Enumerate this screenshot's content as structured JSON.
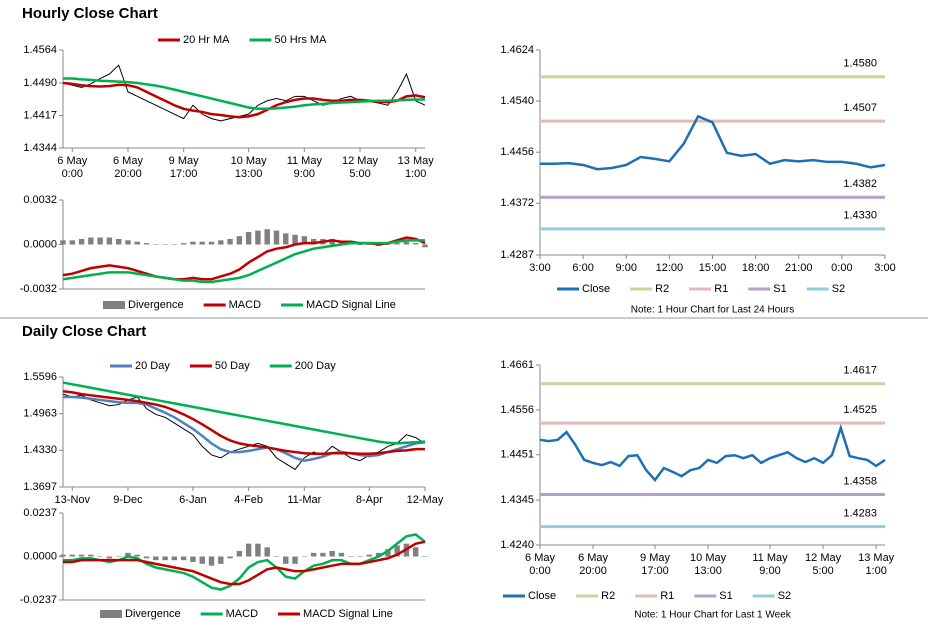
{
  "headings": [
    "Hourly Close Chart",
    "Daily Close Chart"
  ],
  "chart_data": [
    {
      "type": "line",
      "categories": [
        null,
        [
          "6 May",
          "0:00"
        ],
        null,
        null,
        null,
        null,
        null,
        [
          "6 May",
          "20:00"
        ],
        null,
        null,
        null,
        null,
        null,
        [
          "9 May",
          "17:00"
        ],
        null,
        null,
        null,
        null,
        null,
        null,
        [
          "10 May",
          "13:00"
        ],
        null,
        null,
        null,
        null,
        null,
        [
          "11 May",
          "9:00"
        ],
        null,
        null,
        null,
        null,
        null,
        [
          "12 May",
          "5:00"
        ],
        null,
        null,
        null,
        null,
        null,
        [
          "13 May",
          "1:00"
        ],
        null
      ],
      "values": [
        1.449,
        1.4485,
        1.448,
        1.4488,
        1.45,
        1.451,
        1.453,
        1.447,
        1.446,
        1.445,
        1.444,
        1.443,
        1.442,
        1.441,
        1.444,
        1.442,
        1.441,
        1.4405,
        1.441,
        1.4415,
        1.442,
        1.444,
        1.445,
        1.4455,
        1.445,
        1.446,
        1.446,
        1.445,
        1.444,
        1.4445,
        1.4455,
        1.446,
        1.445,
        1.4448,
        1.4445,
        1.444,
        1.447,
        1.451,
        1.445,
        1.444
      ],
      "color": "#000000",
      "series": [
        {
          "name": "20 Hr MA",
          "color": "#c00000",
          "values": [
            1.449,
            1.4488,
            1.4485,
            1.4483,
            1.4482,
            1.4483,
            1.4486,
            1.4485,
            1.448,
            1.447,
            1.446,
            1.445,
            1.444,
            1.4432,
            1.4428,
            1.4425,
            1.442,
            1.4418,
            1.4415,
            1.4413,
            1.4415,
            1.442,
            1.443,
            1.444,
            1.4447,
            1.4452,
            1.4455,
            1.4455,
            1.4452,
            1.445,
            1.445,
            1.4452,
            1.4452,
            1.445,
            1.4448,
            1.4447,
            1.445,
            1.446,
            1.4462,
            1.4458
          ]
        },
        {
          "name": "50 Hrs MA",
          "color": "#00b050",
          "values": [
            1.45,
            1.45,
            1.4498,
            1.4497,
            1.4495,
            1.4494,
            1.4493,
            1.4492,
            1.449,
            1.4487,
            1.4484,
            1.448,
            1.4475,
            1.447,
            1.4465,
            1.446,
            1.4455,
            1.445,
            1.4445,
            1.444,
            1.4435,
            1.4432,
            1.4432,
            1.4433,
            1.4435,
            1.4437,
            1.444,
            1.4442,
            1.4443,
            1.4445,
            1.4446,
            1.4447,
            1.4448,
            1.4449,
            1.445,
            1.445,
            1.4451,
            1.4452,
            1.4453,
            1.4453
          ]
        }
      ],
      "ylim": [
        1.4344,
        1.4564
      ],
      "yticks": [
        1.4564,
        {
          "value": 1.449,
          "label": "1.4490"
        },
        1.4417,
        1.4344
      ],
      "grid": false
    },
    {
      "type": "line",
      "series": [
        {
          "name": "Divergence",
          "style": "bar",
          "color": "#808080",
          "values": [
            0.0003,
            0.0003,
            0.0004,
            0.0005,
            0.0005,
            0.0005,
            0.0004,
            0.0003,
            0.0002,
            0.0001,
            0.0,
            0.0,
            0.0,
            0.0001,
            0.0002,
            0.0002,
            0.0002,
            0.0003,
            0.0004,
            0.0006,
            0.0009,
            0.001,
            0.0011,
            0.001,
            0.0008,
            0.0007,
            0.0006,
            0.0004,
            0.0004,
            0.0004,
            0.0002,
            0.0001,
            0.0,
            0.0,
            -0.0001,
            0.0,
            0.0001,
            0.0002,
            0.0001,
            -0.0002
          ]
        },
        {
          "name": "MACD",
          "color": "#c00000",
          "values": [
            -0.0022,
            -0.0021,
            -0.0019,
            -0.0017,
            -0.0016,
            -0.0015,
            -0.0016,
            -0.0017,
            -0.0019,
            -0.0021,
            -0.0023,
            -0.0024,
            -0.0025,
            -0.0025,
            -0.0024,
            -0.0025,
            -0.0025,
            -0.0023,
            -0.0021,
            -0.0018,
            -0.0013,
            -0.0009,
            -0.0005,
            -0.0003,
            -0.0002,
            0.0,
            0.0001,
            0.0001,
            0.0002,
            0.0003,
            0.0002,
            0.0002,
            0.0001,
            0.0001,
            0.0,
            0.0001,
            0.0003,
            0.0005,
            0.0004,
            0.0001
          ]
        },
        {
          "name": "MACD Signal Line",
          "color": "#00b050",
          "values": [
            -0.0025,
            -0.0024,
            -0.0023,
            -0.0022,
            -0.0021,
            -0.002,
            -0.002,
            -0.002,
            -0.0021,
            -0.0022,
            -0.0023,
            -0.0024,
            -0.0025,
            -0.0026,
            -0.0026,
            -0.0027,
            -0.0027,
            -0.0026,
            -0.0025,
            -0.0024,
            -0.0022,
            -0.0019,
            -0.0016,
            -0.0013,
            -0.001,
            -0.0007,
            -0.0005,
            -0.0003,
            -0.0002,
            -0.0001,
            0.0,
            0.0001,
            0.0001,
            0.0001,
            0.0001,
            0.0001,
            0.0002,
            0.0003,
            0.0003,
            0.0003
          ]
        }
      ],
      "ylim": [
        -0.0032,
        0.0032
      ],
      "yticks": [
        0.0032,
        {
          "value": 0,
          "label": "0.0000"
        },
        -0.0032
      ],
      "grid": false
    },
    {
      "type": "line",
      "categories": [
        "3:00",
        null,
        null,
        "6:00",
        null,
        null,
        "9:00",
        null,
        null,
        "12:00",
        null,
        null,
        "15:00",
        null,
        null,
        "18:00",
        null,
        null,
        "21:00",
        null,
        null,
        "0:00",
        null,
        null,
        "3:00"
      ],
      "series": [
        {
          "name": "Close",
          "color": "#1f6fb4",
          "values": [
            1.4437,
            1.4437,
            1.4438,
            1.4435,
            1.4428,
            1.443,
            1.4435,
            1.4448,
            1.4445,
            1.4441,
            1.447,
            1.4515,
            1.4505,
            1.4455,
            1.445,
            1.4453,
            1.4437,
            1.4443,
            1.4441,
            1.4443,
            1.444,
            1.444,
            1.4437,
            1.4431,
            1.4435
          ]
        }
      ],
      "reference_lines": {
        "names": [
          "R2",
          "R1",
          "S1",
          "S2"
        ],
        "colors": [
          "#c4d79b",
          "#e6b9b8",
          "#b3a2c7",
          "#93cddd"
        ],
        "values": [
          1.458,
          1.4507,
          1.4382,
          1.433
        ],
        "value_labels": [
          "1.4580",
          "1.4507",
          "1.4382",
          "1.4330"
        ]
      },
      "ylim": [
        1.4287,
        1.4624
      ],
      "yticks": [
        1.4624,
        {
          "value": 1.454,
          "label": "1.4540"
        },
        1.4456,
        1.4372,
        1.4287
      ],
      "grid": false,
      "note": "Note: 1 Hour Chart for Last 24 Hours"
    },
    {
      "type": "line",
      "categories": [
        null,
        "13-Nov",
        null,
        null,
        null,
        null,
        null,
        "9-Dec",
        null,
        null,
        null,
        null,
        null,
        null,
        "6-Jan",
        null,
        null,
        null,
        null,
        null,
        "4-Feb",
        null,
        null,
        null,
        null,
        null,
        "11-Mar",
        null,
        null,
        null,
        null,
        null,
        null,
        "8-Apr",
        null,
        null,
        null,
        null,
        null,
        "12-May"
      ],
      "values": [
        1.53,
        1.525,
        1.528,
        1.52,
        1.515,
        1.51,
        1.512,
        1.52,
        1.525,
        1.505,
        1.495,
        1.49,
        1.48,
        1.47,
        1.46,
        1.44,
        1.425,
        1.42,
        1.43,
        1.435,
        1.44,
        1.445,
        1.44,
        1.42,
        1.41,
        1.4,
        1.42,
        1.43,
        1.425,
        1.44,
        1.43,
        1.42,
        1.415,
        1.425,
        1.43,
        1.44,
        1.445,
        1.46,
        1.455,
        1.445
      ],
      "color": "#000000",
      "series": [
        {
          "name": "20 Day",
          "color": "#4f81bd",
          "values": [
            1.525,
            1.525,
            1.524,
            1.522,
            1.52,
            1.518,
            1.516,
            1.515,
            1.515,
            1.512,
            1.505,
            1.498,
            1.49,
            1.48,
            1.47,
            1.458,
            1.445,
            1.435,
            1.43,
            1.43,
            1.432,
            1.435,
            1.438,
            1.435,
            1.428,
            1.42,
            1.415,
            1.418,
            1.422,
            1.428,
            1.43,
            1.428,
            1.425,
            1.423,
            1.425,
            1.43,
            1.435,
            1.44,
            1.445,
            1.447
          ]
        },
        {
          "name": "50 Day",
          "color": "#c00000",
          "values": [
            1.535,
            1.533,
            1.53,
            1.528,
            1.526,
            1.524,
            1.522,
            1.52,
            1.518,
            1.515,
            1.512,
            1.508,
            1.502,
            1.495,
            1.487,
            1.478,
            1.468,
            1.458,
            1.45,
            1.445,
            1.442,
            1.44,
            1.438,
            1.435,
            1.432,
            1.43,
            1.428,
            1.427,
            1.427,
            1.428,
            1.428,
            1.428,
            1.427,
            1.427,
            1.428,
            1.43,
            1.432,
            1.433,
            1.435,
            1.435
          ]
        },
        {
          "name": "200 Day",
          "color": "#00b050",
          "values": [
            1.55,
            1.547,
            1.544,
            1.541,
            1.538,
            1.535,
            1.532,
            1.529,
            1.526,
            1.523,
            1.52,
            1.517,
            1.514,
            1.511,
            1.508,
            1.505,
            1.502,
            1.499,
            1.496,
            1.493,
            1.49,
            1.487,
            1.484,
            1.481,
            1.478,
            1.475,
            1.472,
            1.469,
            1.466,
            1.463,
            1.46,
            1.457,
            1.454,
            1.451,
            1.448,
            1.446,
            1.445,
            1.446,
            1.447,
            1.448
          ]
        }
      ],
      "ylim": [
        1.3697,
        1.5596
      ],
      "yticks": [
        1.5596,
        1.4963,
        {
          "value": 1.433,
          "label": "1.4330"
        },
        1.3697
      ],
      "grid": false
    },
    {
      "type": "line",
      "series": [
        {
          "name": "Divergence",
          "style": "bar",
          "color": "#808080",
          "values": [
            0.001,
            0.001,
            0.001,
            0.001,
            0.0,
            -0.001,
            0.0,
            0.002,
            0.001,
            -0.001,
            -0.002,
            -0.002,
            -0.002,
            -0.002,
            -0.003,
            -0.004,
            -0.005,
            -0.004,
            -0.001,
            0.003,
            0.007,
            0.007,
            0.005,
            0.0,
            -0.004,
            -0.004,
            0.0,
            0.002,
            0.002,
            0.003,
            0.002,
            0.0,
            0.0,
            0.001,
            0.002,
            0.004,
            0.006,
            0.007,
            0.005,
            0.0
          ]
        },
        {
          "name": "MACD",
          "color": "#00b050",
          "values": [
            -0.002,
            -0.002,
            -0.001,
            -0.001,
            -0.002,
            -0.003,
            -0.002,
            0.0,
            -0.001,
            -0.004,
            -0.006,
            -0.007,
            -0.008,
            -0.009,
            -0.011,
            -0.014,
            -0.017,
            -0.018,
            -0.016,
            -0.012,
            -0.006,
            -0.003,
            -0.002,
            -0.006,
            -0.011,
            -0.012,
            -0.008,
            -0.005,
            -0.004,
            -0.002,
            -0.002,
            -0.004,
            -0.004,
            -0.002,
            0.0,
            0.003,
            0.007,
            0.011,
            0.012,
            0.008
          ]
        },
        {
          "name": "MACD Signal Line",
          "color": "#c00000",
          "values": [
            -0.003,
            -0.003,
            -0.002,
            -0.002,
            -0.002,
            -0.002,
            -0.002,
            -0.002,
            -0.002,
            -0.003,
            -0.004,
            -0.005,
            -0.006,
            -0.007,
            -0.008,
            -0.01,
            -0.012,
            -0.014,
            -0.015,
            -0.015,
            -0.013,
            -0.01,
            -0.007,
            -0.006,
            -0.007,
            -0.008,
            -0.008,
            -0.007,
            -0.006,
            -0.005,
            -0.004,
            -0.004,
            -0.004,
            -0.003,
            -0.002,
            -0.001,
            0.001,
            0.004,
            0.007,
            0.008
          ]
        }
      ],
      "ylim": [
        -0.0237,
        0.0237
      ],
      "yticks": [
        0.0237,
        {
          "value": 0,
          "label": "0.0000"
        },
        -0.0237
      ],
      "grid": false
    },
    {
      "type": "line",
      "categories": [
        [
          "6 May",
          "0:00"
        ],
        null,
        null,
        null,
        null,
        null,
        [
          "6 May",
          "20:00"
        ],
        null,
        null,
        null,
        null,
        null,
        null,
        [
          "9 May",
          "17:00"
        ],
        null,
        null,
        null,
        null,
        null,
        [
          "10 May",
          "13:00"
        ],
        null,
        null,
        null,
        null,
        null,
        null,
        [
          "11 May",
          "9:00"
        ],
        null,
        null,
        null,
        null,
        null,
        [
          "12 May",
          "5:00"
        ],
        null,
        null,
        null,
        null,
        null,
        [
          "13 May",
          "1:00"
        ],
        null
      ],
      "series": [
        {
          "name": "Close",
          "color": "#1f6fb4",
          "values": [
            1.4486,
            1.4483,
            1.4486,
            1.4504,
            1.4474,
            1.4439,
            1.4432,
            1.4427,
            1.4434,
            1.4425,
            1.4448,
            1.445,
            1.4415,
            1.4392,
            1.442,
            1.4411,
            1.4401,
            1.4415,
            1.442,
            1.4439,
            1.4432,
            1.4448,
            1.445,
            1.4443,
            1.445,
            1.4432,
            1.4443,
            1.445,
            1.4457,
            1.4443,
            1.4434,
            1.4443,
            1.4432,
            1.445,
            1.4514,
            1.4448,
            1.4443,
            1.4439,
            1.4425,
            1.4439
          ]
        }
      ],
      "reference_lines": {
        "names": [
          "R2",
          "R1",
          "S1",
          "S2"
        ],
        "colors": [
          "#c4d79b",
          "#e6b9b8",
          "#b3a2c7",
          "#93cddd"
        ],
        "values": [
          1.4617,
          1.4525,
          1.4358,
          1.4283
        ],
        "value_labels": [
          "1.4617",
          "1.4525",
          "1.4358",
          "1.4283"
        ]
      },
      "ylim": [
        1.424,
        1.4661
      ],
      "yticks": [
        1.4661,
        1.4556,
        1.4451,
        1.4345,
        {
          "value": 1.424,
          "label": "1.4240"
        }
      ],
      "grid": false,
      "note": "Note: 1 Hour Chart for Last 1 Week"
    }
  ]
}
